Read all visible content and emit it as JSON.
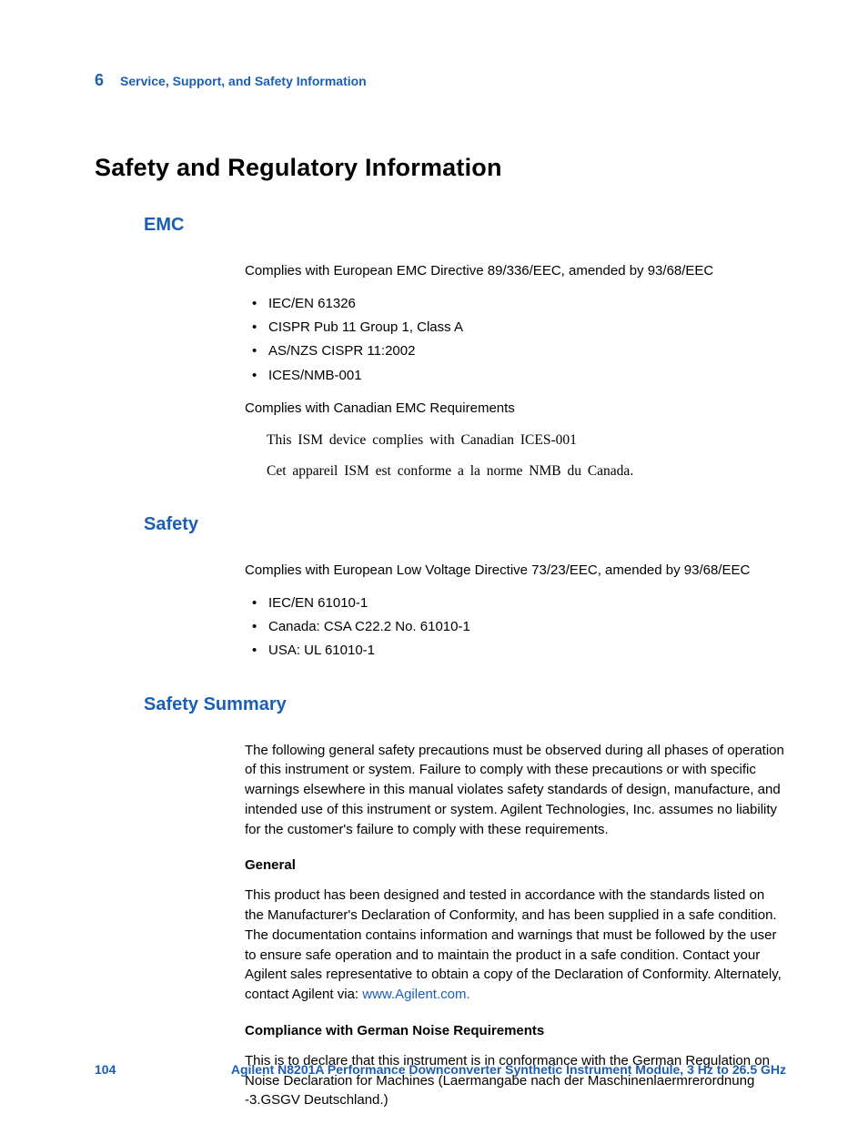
{
  "header": {
    "chapter_num": "6",
    "chapter_title": "Service, Support, and Safety Information"
  },
  "h1": "Safety and Regulatory Information",
  "emc": {
    "heading": "EMC",
    "intro": "Complies with European EMC Directive 89/336/EEC, amended by 93/68/EEC",
    "bullets": {
      "b0": "IEC/EN 61326",
      "b1": "CISPR Pub 11 Group 1, Class A",
      "b2": "AS/NZS CISPR 11:2002",
      "b3": "ICES/NMB-001"
    },
    "canadian_intro": "Complies with Canadian EMC Requirements",
    "canadian_en": "This ISM device complies with Canadian ICES-001",
    "canadian_fr": "Cet appareil ISM est conforme a la norme NMB du Canada."
  },
  "safety": {
    "heading": "Safety",
    "intro": "Complies with European Low Voltage Directive 73/23/EEC, amended by 93/68/EEC",
    "bullets": {
      "b0": "IEC/EN 61010-1",
      "b1": "Canada: CSA C22.2 No. 61010-1",
      "b2": "USA: UL 61010-1"
    }
  },
  "summary": {
    "heading": "Safety Summary",
    "para": "The following general safety precautions must be observed during all phases of operation of this instrument or system. Failure to comply with these precautions or with specific warnings elsewhere in this manual violates safety standards of design, manufacture, and intended use of this instrument or system. Agilent Technologies, Inc. assumes no liability for the customer's failure to comply with these requirements.",
    "general_h": "General",
    "general_p_pre": "This product has been designed and tested in accordance with the standards listed on the Manufacturer's Declaration of Conformity, and has been supplied in a safe condition. The documentation contains information and warnings that must be followed by the user to ensure safe operation and to maintain the product in a safe condition. Contact your Agilent sales representative to obtain a copy of the Declaration of Conformity. Alternately, contact Agilent via: ",
    "general_link": "www.Agilent.com.",
    "german_h": "Compliance with German Noise Requirements",
    "german_p": "This is to declare that this instrument is in conformance with the German Regulation on Noise Declaration for Machines (Laermangabe nach der Maschinenlaermrerordnung -3.GSGV Deutschland.)"
  },
  "footer": {
    "page": "104",
    "title": "Agilent N8201A Performance Downconverter Synthetic Instrument Module, 3 Hz to 26.5 GHz"
  }
}
